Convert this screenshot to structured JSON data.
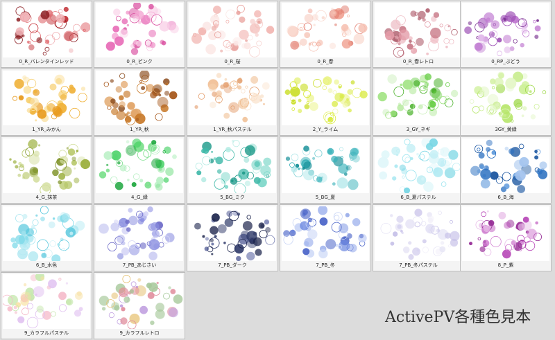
{
  "footer_title": "ActivePV各種色見本",
  "samples": [
    {
      "label": "0_R_バレンタインレッド",
      "colors": [
        "#c0282e",
        "#e06a6f",
        "#8a1a1f",
        "#f0b0b4"
      ]
    },
    {
      "label": "0_R_ピンク",
      "colors": [
        "#e86fb8",
        "#f4a7d3",
        "#d94d9f",
        "#f9d0e7"
      ]
    },
    {
      "label": "0_R_桜",
      "colors": [
        "#f2b7b3",
        "#f7d3d0",
        "#e9a19c",
        "#fbe6e4"
      ]
    },
    {
      "label": "0_R_春",
      "colors": [
        "#f0a090",
        "#f6c2b4",
        "#e27f72",
        "#fadcd2"
      ]
    },
    {
      "label": "0_R_春レトロ",
      "colors": [
        "#e39aa6",
        "#c97a88",
        "#f0c0c8",
        "#b0606f"
      ]
    },
    {
      "label": "0_RP_ぶどう",
      "colors": [
        "#9c4fb5",
        "#c07ad1",
        "#7a3391",
        "#e0b7ea"
      ]
    },
    {
      "label": "1_YR_みかん",
      "colors": [
        "#f0b23a",
        "#f6cf6f",
        "#e89a1c",
        "#fbe3a6"
      ]
    },
    {
      "label": "1_YR_秋",
      "colors": [
        "#c87a2a",
        "#a85a1e",
        "#e0a060",
        "#8a4a1c"
      ]
    },
    {
      "label": "1_YR_秋パステル",
      "colors": [
        "#efb98a",
        "#f5d2b0",
        "#e4a070",
        "#fae4cf"
      ]
    },
    {
      "label": "2_Y_ライム",
      "colors": [
        "#d8ea3c",
        "#e8f27a",
        "#c7dc1a",
        "#f2f8b4"
      ]
    },
    {
      "label": "3_GY_ネギ",
      "colors": [
        "#6bcf4a",
        "#9ee27e",
        "#48b028",
        "#c9efb8"
      ]
    },
    {
      "label": "3GY_黄緑",
      "colors": [
        "#b6e66a",
        "#cff09a",
        "#9ed848",
        "#e4f7c8"
      ]
    },
    {
      "label": "4_G_抹茶",
      "colors": [
        "#9aae3c",
        "#b8c86a",
        "#7c9024",
        "#d6e0a4"
      ]
    },
    {
      "label": "4_G_緑",
      "colors": [
        "#3fcf5f",
        "#7ee08e",
        "#20a840",
        "#b8f0c4"
      ]
    },
    {
      "label": "5_BG_ミク",
      "colors": [
        "#3fb8a8",
        "#7ad6c8",
        "#1e9a8a",
        "#b6ece4"
      ]
    },
    {
      "label": "5_BG_夏",
      "colors": [
        "#37b0b8",
        "#7acfd4",
        "#168f98",
        "#b4e8ea"
      ]
    },
    {
      "label": "6_B_夏パステル",
      "colors": [
        "#9ae4ef",
        "#c0eef4",
        "#78d6e4",
        "#e0f7fa"
      ]
    },
    {
      "label": "6_B_海",
      "colors": [
        "#2a6fc0",
        "#5a96da",
        "#124f9c",
        "#a4c4ee"
      ]
    },
    {
      "label": "6_B_水色",
      "colors": [
        "#7ad8e8",
        "#a8e6f0",
        "#54c6dc",
        "#d4f3f8"
      ]
    },
    {
      "label": "7_PB_あじさい",
      "colors": [
        "#8a8ee0",
        "#b0b2ec",
        "#6e6cc8",
        "#d6d6f6"
      ]
    },
    {
      "label": "7_PB_ダーク",
      "colors": [
        "#2f3a6a",
        "#4a5490",
        "#1c244c",
        "#7a82b4"
      ]
    },
    {
      "label": "7_PB_冬",
      "colors": [
        "#6a86e0",
        "#9aaeec",
        "#4a64c8",
        "#cad6f6"
      ]
    },
    {
      "label": "7_PB_冬パステル",
      "colors": [
        "#d8d4f0",
        "#e8e6f6",
        "#c6c0e8",
        "#f2f0fa"
      ]
    },
    {
      "label": "8_P_紫",
      "colors": [
        "#b848b8",
        "#d07ed0",
        "#962c96",
        "#e8bde8"
      ]
    },
    {
      "label": "9_カラフルパステル",
      "colors": [
        "#f5b8c8",
        "#f8e0a0",
        "#c8e8b0",
        "#e0c0f0"
      ]
    },
    {
      "label": "9_カラフルレトロ",
      "colors": [
        "#e08a9a",
        "#c0a0e0",
        "#e6c070",
        "#a6c89a"
      ]
    }
  ]
}
